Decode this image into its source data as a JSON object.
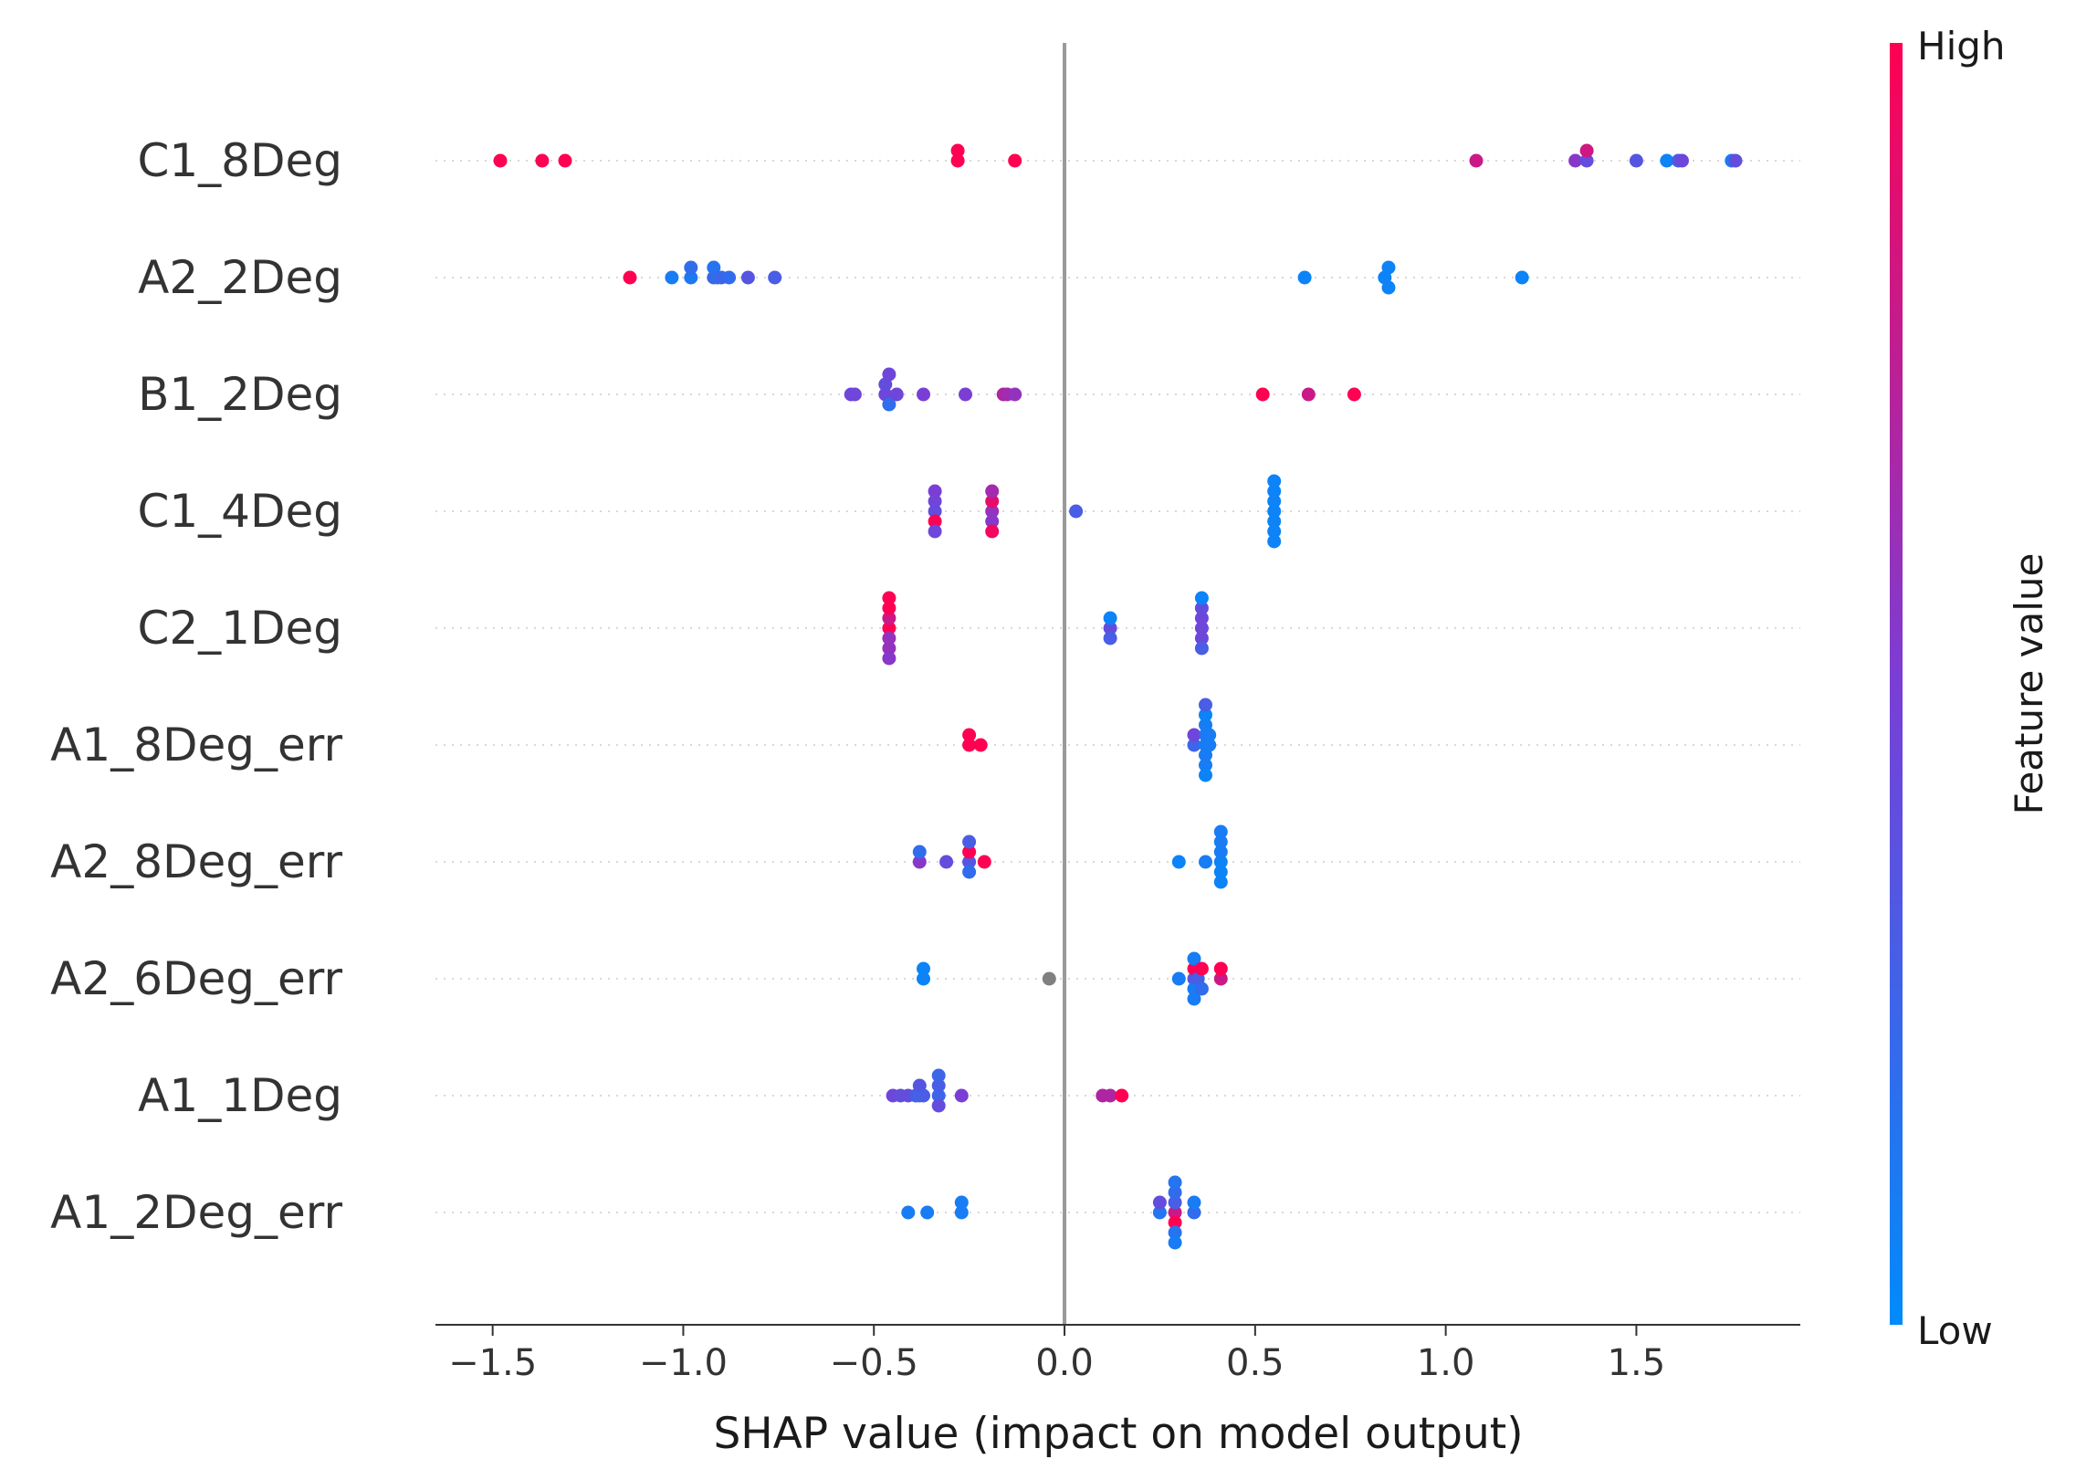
{
  "chart_data": {
    "type": "scatter",
    "subtype": "shap-beeswarm",
    "title": "",
    "xlabel": "SHAP value (impact on model output)",
    "ylabel": "",
    "xlim": [
      -1.65,
      1.93
    ],
    "xticks": [
      -1.5,
      -1.0,
      -0.5,
      0.0,
      0.5,
      1.0,
      1.5
    ],
    "xtick_labels": [
      "−1.5",
      "−1.0",
      "−0.5",
      "0.0",
      "0.5",
      "1.0",
      "1.5"
    ],
    "grid": "dotted horizontal row guides",
    "colorbar": {
      "label": "Feature value",
      "high_label": "High",
      "low_label": "Low",
      "low_color": "#008bfb",
      "high_color": "#ff0052"
    },
    "missing_value_color": "#808080",
    "features": [
      {
        "name": "C1_8Deg",
        "points": [
          {
            "x": -1.48,
            "v": 1.0
          },
          {
            "x": -1.37,
            "v": 1.0
          },
          {
            "x": -1.31,
            "v": 1.0
          },
          {
            "x": -0.28,
            "v": 1.0
          },
          {
            "x": -0.28,
            "v": 1.0
          },
          {
            "x": -0.13,
            "v": 1.0
          },
          {
            "x": 1.08,
            "v": 0.8
          },
          {
            "x": 1.34,
            "v": 0.55
          },
          {
            "x": 1.37,
            "v": 0.4
          },
          {
            "x": 1.37,
            "v": 0.82
          },
          {
            "x": 1.5,
            "v": 0.35
          },
          {
            "x": 1.58,
            "v": 0.05
          },
          {
            "x": 1.61,
            "v": 0.3
          },
          {
            "x": 1.62,
            "v": 0.45
          },
          {
            "x": 1.75,
            "v": 0.1
          },
          {
            "x": 1.76,
            "v": 0.4
          }
        ]
      },
      {
        "name": "A2_2Deg",
        "points": [
          {
            "x": -1.14,
            "v": 1.0
          },
          {
            "x": -1.03,
            "v": 0.1
          },
          {
            "x": -0.98,
            "v": 0.12
          },
          {
            "x": -0.98,
            "v": 0.2
          },
          {
            "x": -0.92,
            "v": 0.25
          },
          {
            "x": -0.92,
            "v": 0.15
          },
          {
            "x": -0.91,
            "v": 0.18
          },
          {
            "x": -0.9,
            "v": 0.25
          },
          {
            "x": -0.88,
            "v": 0.2
          },
          {
            "x": -0.83,
            "v": 0.35
          },
          {
            "x": -0.76,
            "v": 0.3
          },
          {
            "x": 0.63,
            "v": 0.05
          },
          {
            "x": 0.84,
            "v": 0.05
          },
          {
            "x": 0.85,
            "v": 0.05
          },
          {
            "x": 0.85,
            "v": 0.05
          },
          {
            "x": 1.2,
            "v": 0.05
          }
        ]
      },
      {
        "name": "B1_2Deg",
        "points": [
          {
            "x": -0.56,
            "v": 0.45
          },
          {
            "x": -0.55,
            "v": 0.45
          },
          {
            "x": -0.47,
            "v": 0.45
          },
          {
            "x": -0.47,
            "v": 0.4
          },
          {
            "x": -0.46,
            "v": 0.2
          },
          {
            "x": -0.46,
            "v": 0.45
          },
          {
            "x": -0.44,
            "v": 0.45
          },
          {
            "x": -0.37,
            "v": 0.5
          },
          {
            "x": -0.26,
            "v": 0.5
          },
          {
            "x": -0.16,
            "v": 0.7
          },
          {
            "x": -0.15,
            "v": 0.65
          },
          {
            "x": -0.13,
            "v": 0.6
          },
          {
            "x": 0.52,
            "v": 1.0
          },
          {
            "x": 0.64,
            "v": 0.8
          },
          {
            "x": 0.76,
            "v": 1.0
          }
        ]
      },
      {
        "name": "C1_4Deg",
        "points": [
          {
            "x": -0.34,
            "v": 0.4
          },
          {
            "x": -0.34,
            "v": 0.45
          },
          {
            "x": -0.34,
            "v": 1.0
          },
          {
            "x": -0.34,
            "v": 0.5
          },
          {
            "x": -0.34,
            "v": 0.45
          },
          {
            "x": -0.19,
            "v": 0.6
          },
          {
            "x": -0.19,
            "v": 0.9
          },
          {
            "x": -0.19,
            "v": 0.55
          },
          {
            "x": -0.19,
            "v": 0.65
          },
          {
            "x": -0.19,
            "v": 0.95
          },
          {
            "x": 0.03,
            "v": 0.3
          },
          {
            "x": 0.55,
            "v": 0.05
          },
          {
            "x": 0.55,
            "v": 0.05
          },
          {
            "x": 0.55,
            "v": 0.05
          },
          {
            "x": 0.55,
            "v": 0.05
          },
          {
            "x": 0.55,
            "v": 0.05
          },
          {
            "x": 0.55,
            "v": 0.05
          },
          {
            "x": 0.55,
            "v": 0.05
          }
        ]
      },
      {
        "name": "C2_1Deg",
        "points": [
          {
            "x": -0.46,
            "v": 1.0
          },
          {
            "x": -0.46,
            "v": 0.8
          },
          {
            "x": -0.46,
            "v": 0.6
          },
          {
            "x": -0.46,
            "v": 1.0
          },
          {
            "x": -0.46,
            "v": 0.6
          },
          {
            "x": -0.46,
            "v": 1.0
          },
          {
            "x": -0.46,
            "v": 0.55
          },
          {
            "x": 0.12,
            "v": 0.4
          },
          {
            "x": 0.12,
            "v": 0.05
          },
          {
            "x": 0.12,
            "v": 0.3
          },
          {
            "x": 0.36,
            "v": 0.45
          },
          {
            "x": 0.36,
            "v": 0.45
          },
          {
            "x": 0.36,
            "v": 0.45
          },
          {
            "x": 0.36,
            "v": 0.4
          },
          {
            "x": 0.36,
            "v": 0.3
          },
          {
            "x": 0.36,
            "v": 0.05
          }
        ]
      },
      {
        "name": "A1_8Deg_err",
        "points": [
          {
            "x": -0.25,
            "v": 1.0
          },
          {
            "x": -0.25,
            "v": 1.0
          },
          {
            "x": -0.22,
            "v": 1.0
          },
          {
            "x": 0.34,
            "v": 0.25
          },
          {
            "x": 0.34,
            "v": 0.45
          },
          {
            "x": 0.37,
            "v": 0.1
          },
          {
            "x": 0.37,
            "v": 0.15
          },
          {
            "x": 0.37,
            "v": 0.1
          },
          {
            "x": 0.37,
            "v": 0.1
          },
          {
            "x": 0.37,
            "v": 0.1
          },
          {
            "x": 0.37,
            "v": 0.05
          },
          {
            "x": 0.37,
            "v": 0.05
          },
          {
            "x": 0.37,
            "v": 0.3
          },
          {
            "x": 0.38,
            "v": 0.1
          },
          {
            "x": 0.38,
            "v": 0.1
          }
        ]
      },
      {
        "name": "A2_8Deg_err",
        "points": [
          {
            "x": -0.38,
            "v": 0.55
          },
          {
            "x": -0.38,
            "v": 0.2
          },
          {
            "x": -0.31,
            "v": 0.4
          },
          {
            "x": -0.25,
            "v": 0.35
          },
          {
            "x": -0.25,
            "v": 1.0
          },
          {
            "x": -0.25,
            "v": 0.2
          },
          {
            "x": -0.25,
            "v": 0.3
          },
          {
            "x": -0.21,
            "v": 1.0
          },
          {
            "x": 0.3,
            "v": 0.05
          },
          {
            "x": 0.37,
            "v": 0.1
          },
          {
            "x": 0.41,
            "v": 0.05
          },
          {
            "x": 0.41,
            "v": 0.1
          },
          {
            "x": 0.41,
            "v": 0.05
          },
          {
            "x": 0.41,
            "v": 0.1
          },
          {
            "x": 0.41,
            "v": 0.05
          },
          {
            "x": 0.41,
            "v": 0.1
          }
        ]
      },
      {
        "name": "A2_6Deg_err",
        "points": [
          {
            "x": -0.37,
            "v": 0.05
          },
          {
            "x": -0.37,
            "v": 0.05
          },
          {
            "x": -0.04,
            "v": null
          },
          {
            "x": 0.3,
            "v": 0.1
          },
          {
            "x": 0.34,
            "v": 0.35
          },
          {
            "x": 0.34,
            "v": 1.0
          },
          {
            "x": 0.34,
            "v": 0.1
          },
          {
            "x": 0.34,
            "v": 0.1
          },
          {
            "x": 0.34,
            "v": 0.1
          },
          {
            "x": 0.35,
            "v": 0.3
          },
          {
            "x": 0.36,
            "v": 1.0
          },
          {
            "x": 0.36,
            "v": 0.2
          },
          {
            "x": 0.41,
            "v": 0.8
          },
          {
            "x": 0.41,
            "v": 1.0
          }
        ]
      },
      {
        "name": "A1_1Deg",
        "points": [
          {
            "x": -0.45,
            "v": 0.45
          },
          {
            "x": -0.43,
            "v": 0.4
          },
          {
            "x": -0.41,
            "v": 0.4
          },
          {
            "x": -0.39,
            "v": 0.3
          },
          {
            "x": -0.38,
            "v": 0.25
          },
          {
            "x": -0.38,
            "v": 0.35
          },
          {
            "x": -0.37,
            "v": 0.3
          },
          {
            "x": -0.33,
            "v": 0.25
          },
          {
            "x": -0.33,
            "v": 0.3
          },
          {
            "x": -0.33,
            "v": 0.4
          },
          {
            "x": -0.33,
            "v": 0.25
          },
          {
            "x": -0.27,
            "v": 0.5
          },
          {
            "x": 0.1,
            "v": 0.7
          },
          {
            "x": 0.12,
            "v": 0.7
          },
          {
            "x": 0.15,
            "v": 1.0
          }
        ]
      },
      {
        "name": "A1_2Deg_err",
        "points": [
          {
            "x": -0.41,
            "v": 0.1
          },
          {
            "x": -0.36,
            "v": 0.1
          },
          {
            "x": -0.27,
            "v": 0.1
          },
          {
            "x": -0.27,
            "v": 0.1
          },
          {
            "x": 0.25,
            "v": 0.15
          },
          {
            "x": 0.25,
            "v": 0.4
          },
          {
            "x": 0.29,
            "v": 0.8
          },
          {
            "x": 0.29,
            "v": 0.3
          },
          {
            "x": 0.29,
            "v": 1.0
          },
          {
            "x": 0.29,
            "v": 0.2
          },
          {
            "x": 0.29,
            "v": 0.15
          },
          {
            "x": 0.29,
            "v": 0.15
          },
          {
            "x": 0.29,
            "v": 0.1
          },
          {
            "x": 0.34,
            "v": 0.2
          },
          {
            "x": 0.34,
            "v": 0.1
          }
        ]
      }
    ]
  }
}
